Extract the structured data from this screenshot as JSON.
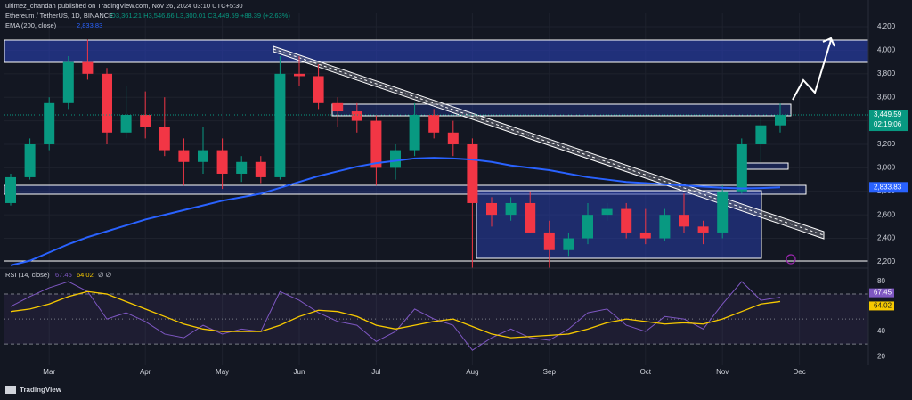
{
  "publisher": "ultimez_chandan published on TradingView.com, Nov 26, 2024 03:10 UTC+5:30",
  "footer": "TradingView",
  "chart_data": [
    {
      "type": "candlestick",
      "title": "Ethereum / TetherUS, 1D, BINANCE",
      "ohlc_text": "O3,361.21 H3,546.66 L3,300.01 C3,449.59 +88.39 (+2.63%)",
      "categories": [
        null,
        null,
        "Mar",
        null,
        null,
        null,
        null,
        "Apr",
        null,
        null,
        null,
        "May",
        null,
        null,
        null,
        "Jun",
        null,
        null,
        null,
        "Jul",
        null,
        null,
        null,
        null,
        "Aug",
        null,
        null,
        null,
        "Sep",
        null,
        null,
        null,
        null,
        "Oct",
        null,
        null,
        null,
        "Nov",
        null,
        null,
        null,
        "Dec",
        null,
        null,
        null
      ],
      "open": [
        2700,
        2920,
        3200,
        3550,
        3900,
        3800,
        3300,
        3450,
        3350,
        3150,
        3050,
        3150,
        2950,
        3050,
        2920,
        3800,
        3780,
        3550,
        3480,
        3400,
        3000,
        3150,
        3450,
        3300,
        3200,
        2700,
        2600,
        2700,
        2450,
        2300,
        2400,
        2600,
        2650,
        2450,
        2400,
        2600,
        2500,
        2450,
        2800,
        3200,
        3361.21,
        null,
        null,
        null,
        null
      ],
      "high": [
        2950,
        3250,
        3600,
        3950,
        4090,
        3850,
        3700,
        3650,
        3600,
        3250,
        3350,
        3250,
        3100,
        3100,
        3950,
        3950,
        3880,
        3600,
        3550,
        3450,
        3200,
        3550,
        3500,
        3400,
        3250,
        2750,
        2750,
        2800,
        2550,
        2450,
        2700,
        2700,
        2700,
        2650,
        2650,
        2780,
        2550,
        2850,
        3250,
        3450,
        3546.66,
        null,
        null,
        null,
        null
      ],
      "low": [
        2680,
        2900,
        3150,
        3500,
        3750,
        3200,
        3250,
        3250,
        3100,
        2850,
        2950,
        2820,
        2880,
        2870,
        2900,
        3700,
        3500,
        3350,
        3300,
        2850,
        2900,
        3100,
        3250,
        3100,
        2150,
        2500,
        2550,
        2450,
        2150,
        2250,
        2350,
        2550,
        2400,
        2350,
        2380,
        2450,
        2350,
        2400,
        2780,
        3050,
        3300.01,
        null,
        null,
        null,
        null
      ],
      "close": [
        2920,
        3200,
        3550,
        3900,
        3800,
        3300,
        3450,
        3350,
        3150,
        3050,
        3150,
        2950,
        3050,
        2920,
        3800,
        3780,
        3550,
        3480,
        3400,
        3000,
        3150,
        3450,
        3300,
        3200,
        2700,
        2600,
        2700,
        2450,
        2300,
        2400,
        2600,
        2650,
        2450,
        2400,
        2600,
        2500,
        2450,
        2800,
        3200,
        3361.21,
        3449.59,
        null,
        null,
        null,
        null
      ],
      "up_color": "#089981",
      "down_color": "#f23645",
      "last_price_label": "3,449.59",
      "countdown": "02:19:06",
      "series": [
        {
          "name": "EMA (200, close)",
          "color": "#2962ff",
          "last_label": "2,833.83",
          "values": [
            2170,
            2210,
            2280,
            2350,
            2410,
            2460,
            2510,
            2560,
            2600,
            2640,
            2680,
            2720,
            2750,
            2780,
            2830,
            2880,
            2930,
            2970,
            3010,
            3040,
            3060,
            3080,
            3085,
            3080,
            3070,
            3050,
            3020,
            3000,
            2980,
            2950,
            2920,
            2900,
            2880,
            2870,
            2860,
            2850,
            2840,
            2830,
            2825,
            2828,
            2833.83,
            null,
            null,
            null,
            null
          ]
        }
      ],
      "ylim": [
        2154,
        4314
      ],
      "yticks": [
        {
          "value": 2200,
          "label": "2,200"
        },
        {
          "value": 2400,
          "label": "2,400"
        },
        {
          "value": 2600,
          "label": "2,600"
        },
        {
          "value": 2800,
          "label": "2,800"
        },
        {
          "value": 3000,
          "label": "3,000"
        },
        {
          "value": 3200,
          "label": "3,200"
        },
        {
          "value": 3400,
          "label": "3,400"
        },
        {
          "value": 3600,
          "label": "3,600"
        },
        {
          "value": 3800,
          "label": "3,800"
        },
        {
          "value": 4000,
          "label": "4,000"
        },
        {
          "value": 4200,
          "label": "4,200"
        }
      ],
      "grid": true
    },
    {
      "type": "line",
      "legend_suffix": "∅ ∅",
      "series": [
        {
          "name": "RSI (14, close)",
          "color": "#7e57c2",
          "values": [
            60,
            68,
            75,
            80,
            72,
            50,
            55,
            48,
            38,
            35,
            45,
            38,
            42,
            40,
            72,
            65,
            55,
            48,
            45,
            32,
            40,
            58,
            50,
            45,
            25,
            35,
            42,
            35,
            33,
            42,
            55,
            58,
            45,
            40,
            52,
            50,
            42,
            62,
            80,
            65,
            67.45,
            null,
            null,
            null,
            null
          ]
        },
        {
          "color": "#f7c900",
          "values": [
            56,
            58,
            62,
            68,
            72,
            70,
            64,
            58,
            52,
            46,
            42,
            40,
            40,
            40,
            45,
            52,
            57,
            56,
            52,
            45,
            42,
            45,
            48,
            50,
            44,
            38,
            35,
            36,
            37,
            38,
            42,
            47,
            50,
            48,
            46,
            47,
            46,
            50,
            56,
            62,
            64.02,
            null,
            null,
            null,
            null
          ]
        }
      ],
      "bands": [
        30,
        70
      ],
      "midline": 50,
      "ylim": [
        13,
        90
      ],
      "yticks": [
        20,
        40,
        60,
        80
      ]
    }
  ]
}
